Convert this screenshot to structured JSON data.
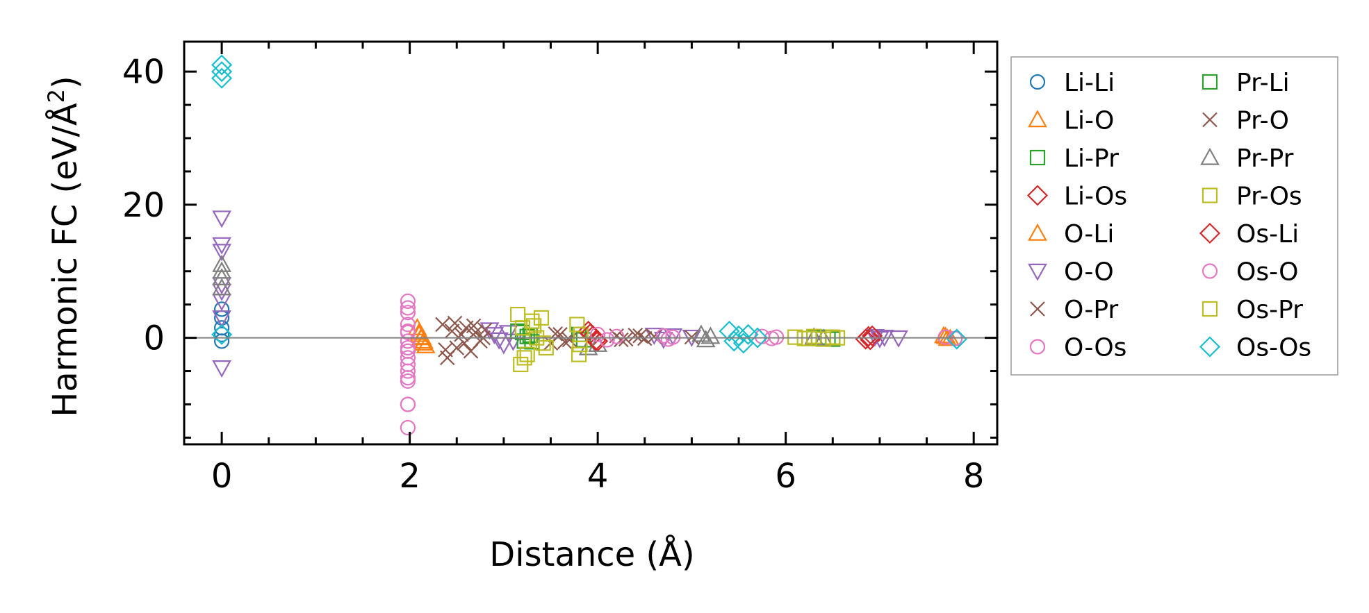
{
  "chart_data": {
    "type": "scatter",
    "xlabel": "Distance (Å)",
    "ylabel_main": "Harmonic FC (eV/Å",
    "ylabel_sup": "2",
    "ylabel_end": ")",
    "xlim": [
      -0.4,
      8.25
    ],
    "ylim": [
      -16,
      44.5
    ],
    "xticks": [
      0,
      2,
      4,
      6,
      8
    ],
    "xtick_labels": [
      "0",
      "2",
      "4",
      "6",
      "8"
    ],
    "yticks": [
      0,
      20,
      40
    ],
    "ytick_labels": [
      "0",
      "20",
      "40"
    ],
    "zero_line": true,
    "grid": false,
    "legend_position": "outside-right",
    "series": [
      {
        "name": "Li-Li",
        "marker": "circle",
        "color": "#1f77b4",
        "fill": false,
        "x": [
          0,
          0,
          0,
          0,
          0
        ],
        "y": [
          4.3,
          3.0,
          1.5,
          0.5,
          -0.5
        ]
      },
      {
        "name": "Li-O",
        "marker": "triangle-up",
        "color": "#ff7f0e",
        "fill": false,
        "x": [
          2.1,
          2.12,
          2.14,
          7.7,
          7.72
        ],
        "y": [
          0.5,
          0.0,
          -0.8,
          0.2,
          -0.1
        ]
      },
      {
        "name": "Li-Pr",
        "marker": "square",
        "color": "#2ca02c",
        "fill": false,
        "x": [
          3.2,
          3.25,
          3.3,
          3.8,
          3.85,
          6.45,
          6.5
        ],
        "y": [
          0.8,
          0.2,
          -0.6,
          0.5,
          -0.3,
          0.1,
          -0.2
        ]
      },
      {
        "name": "Li-Os",
        "marker": "diamond",
        "color": "#d62728",
        "fill": false,
        "x": [
          3.9,
          3.95,
          4.0,
          6.88,
          6.9
        ],
        "y": [
          1.0,
          0.3,
          -0.5,
          0.2,
          -0.3
        ]
      },
      {
        "name": "O-Li",
        "marker": "triangle-up",
        "color": "#ff7f0e",
        "fill": false,
        "x": [
          2.08,
          2.1,
          2.13,
          2.15,
          2.17,
          7.68,
          7.75
        ],
        "y": [
          1.5,
          0.8,
          0.1,
          -0.5,
          -1.2,
          0.3,
          -0.1
        ]
      },
      {
        "name": "O-O",
        "marker": "triangle-down",
        "color": "#9467bd",
        "fill": false,
        "x": [
          0,
          0,
          0,
          0,
          0,
          0,
          0,
          0,
          2.85,
          2.9,
          2.95,
          3.0,
          3.05,
          3.1,
          4.6,
          4.7,
          4.8,
          5.0,
          6.95,
          7.0,
          7.05,
          7.2
        ],
        "y": [
          18,
          14,
          13,
          8,
          7,
          5.5,
          3,
          -4.5,
          1.2,
          0.5,
          -0.3,
          -1.0,
          0.8,
          -0.5,
          0.4,
          -0.2,
          0.3,
          0.1,
          0.2,
          -0.1,
          0.1,
          0.0
        ]
      },
      {
        "name": "O-Pr",
        "marker": "x",
        "color": "#8c564b",
        "fill": false,
        "x": [
          2.35,
          2.4,
          2.45,
          2.5,
          2.55,
          2.6,
          2.65,
          2.7,
          2.75,
          2.8,
          3.5,
          3.6,
          3.7,
          4.2,
          4.3,
          4.4,
          4.5,
          4.6,
          5.0
        ],
        "y": [
          2.0,
          -3.0,
          1.0,
          -1.5,
          0.5,
          1.5,
          -2.0,
          0.8,
          -0.5,
          1.2,
          -0.8,
          0.5,
          -0.3,
          0.3,
          -0.2,
          0.4,
          -0.1,
          0.2,
          0.1
        ]
      },
      {
        "name": "O-Os",
        "marker": "circle",
        "color": "#e377c2",
        "fill": false,
        "x": [
          1.98,
          1.98,
          1.98,
          1.98,
          1.98,
          1.98,
          1.98,
          1.98,
          1.98,
          1.98,
          1.98,
          1.98,
          1.98
        ],
        "y": [
          5.5,
          4.5,
          3.8,
          2.0,
          1.0,
          -0.5,
          -1.5,
          -3.0,
          -4.0,
          -5.0,
          -6.5,
          -10,
          -13.5
        ]
      },
      {
        "name": "Pr-Li",
        "marker": "square",
        "color": "#2ca02c",
        "fill": false,
        "x": [
          3.15,
          3.22,
          3.28,
          6.3,
          6.35
        ],
        "y": [
          1.0,
          -0.5,
          0.4,
          0.1,
          -0.1
        ]
      },
      {
        "name": "Pr-O",
        "marker": "x",
        "color": "#8c564b",
        "fill": false,
        "x": [
          2.38,
          2.48,
          2.58,
          2.68,
          2.78,
          3.55,
          3.65,
          4.25,
          4.45
        ],
        "y": [
          -1.8,
          2.2,
          -0.8,
          1.8,
          0.0,
          0.6,
          -0.6,
          -0.3,
          0.3
        ]
      },
      {
        "name": "Pr-Pr",
        "marker": "triangle-up",
        "color": "#7f7f7f",
        "fill": false,
        "x": [
          0,
          0,
          0,
          0,
          3.9,
          4.0,
          5.1,
          5.15,
          5.2,
          6.3,
          6.4
        ],
        "y": [
          11,
          10,
          9,
          7.5,
          -1.5,
          -1.0,
          0.5,
          -0.3,
          0.2,
          0.1,
          -0.1
        ]
      },
      {
        "name": "Pr-Os",
        "marker": "square",
        "color": "#bcbd22",
        "fill": false,
        "x": [
          3.15,
          3.18,
          3.2,
          3.25,
          3.3,
          3.35,
          3.4,
          3.45,
          3.78,
          3.8,
          3.82,
          6.1,
          6.2,
          6.3,
          6.4,
          6.55
        ],
        "y": [
          3.5,
          -4.0,
          1.5,
          -2.5,
          2.5,
          0.0,
          3.0,
          -1.5,
          2.0,
          -2.5,
          0.5,
          0.1,
          -0.1,
          0.2,
          -0.2,
          0.0
        ]
      },
      {
        "name": "Os-Li",
        "marker": "diamond",
        "color": "#d62728",
        "fill": false,
        "x": [
          3.92,
          3.98,
          6.85,
          6.92
        ],
        "y": [
          0.6,
          -0.4,
          -0.2,
          0.3
        ]
      },
      {
        "name": "Os-O",
        "marker": "circle",
        "color": "#e377c2",
        "fill": false,
        "x": [
          1.98,
          1.98,
          1.98,
          1.98,
          4.0,
          4.1,
          4.2,
          4.7,
          4.75,
          4.8,
          5.75,
          5.85,
          5.9,
          7.7,
          7.8
        ],
        "y": [
          0.8,
          -2.0,
          -6.0,
          -10,
          0.5,
          -0.3,
          0.2,
          0.3,
          -0.2,
          0.1,
          0.2,
          -0.1,
          0.1,
          0.1,
          -0.1
        ]
      },
      {
        "name": "Os-Pr",
        "marker": "square",
        "color": "#bcbd22",
        "fill": false,
        "x": [
          3.22,
          3.32,
          3.42,
          3.81,
          6.25,
          6.5
        ],
        "y": [
          -3.0,
          1.8,
          -0.8,
          -1.0,
          -0.1,
          0.1
        ]
      },
      {
        "name": "Os-Os",
        "marker": "diamond",
        "color": "#17becf",
        "fill": false,
        "x": [
          0,
          0,
          0,
          0,
          5.4,
          5.45,
          5.5,
          5.55,
          5.6,
          5.7,
          7.82
        ],
        "y": [
          41,
          40,
          39,
          0.5,
          1.0,
          -0.5,
          0.3,
          -0.8,
          0.5,
          0.0,
          -0.2
        ]
      }
    ]
  }
}
